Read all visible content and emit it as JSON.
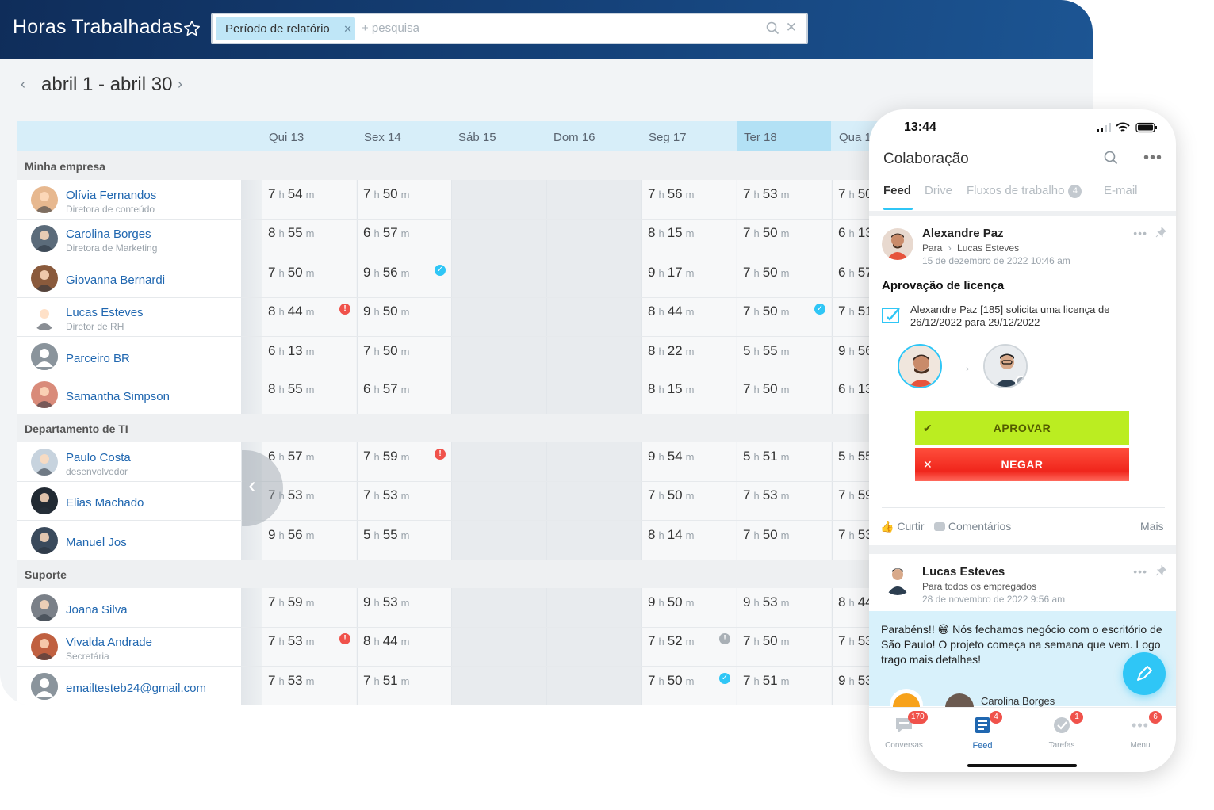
{
  "app": {
    "title": "Horas Trabalhadas",
    "search": {
      "chip": "Período de relatório",
      "placeholder": "+ pesquisa"
    },
    "period": "abril 1 - abril 30"
  },
  "days": [
    "Qui 13",
    "Sex 14",
    "Sáb 15",
    "Dom 16",
    "Seg 17",
    "Ter 18",
    "Qua 1"
  ],
  "departments": [
    {
      "name": "Minha empresa",
      "employees": [
        {
          "name": "Olívia Fernandos",
          "role": "Diretora de conteúdo",
          "hours": [
            [
              "7",
              "54"
            ],
            [
              "7",
              "50"
            ],
            null,
            null,
            [
              "7",
              "56"
            ],
            [
              "7",
              "53"
            ],
            [
              "7",
              "50"
            ]
          ]
        },
        {
          "name": "Carolina Borges",
          "role": "Diretora de Marketing",
          "hours": [
            [
              "8",
              "55"
            ],
            [
              "6",
              "57"
            ],
            null,
            null,
            [
              "8",
              "15"
            ],
            [
              "7",
              "50"
            ],
            [
              "6",
              "13"
            ]
          ]
        },
        {
          "name": "Giovanna Bernardi",
          "role": "",
          "hours": [
            [
              "7",
              "50"
            ],
            [
              "9",
              "56"
            ],
            null,
            null,
            [
              "9",
              "17"
            ],
            [
              "7",
              "50"
            ],
            [
              "6",
              "57"
            ]
          ]
        },
        {
          "name": "Lucas Esteves",
          "role": "Diretor de RH",
          "hours": [
            [
              "8",
              "44"
            ],
            [
              "9",
              "50"
            ],
            null,
            null,
            [
              "8",
              "44"
            ],
            [
              "7",
              "50"
            ],
            [
              "7",
              "51"
            ]
          ]
        },
        {
          "name": "Parceiro BR",
          "role": "",
          "hours": [
            [
              "6",
              "13"
            ],
            [
              "7",
              "50"
            ],
            null,
            null,
            [
              "8",
              "22"
            ],
            [
              "5",
              "55"
            ],
            [
              "9",
              "56"
            ]
          ]
        },
        {
          "name": "Samantha Simpson",
          "role": "",
          "hours": [
            [
              "8",
              "55"
            ],
            [
              "6",
              "57"
            ],
            null,
            null,
            [
              "8",
              "15"
            ],
            [
              "7",
              "50"
            ],
            [
              "6",
              "13"
            ]
          ]
        }
      ]
    },
    {
      "name": "Departamento de TI",
      "employees": [
        {
          "name": "Paulo Costa",
          "role": "desenvolvedor",
          "hours": [
            [
              "6",
              "57"
            ],
            [
              "7",
              "59"
            ],
            null,
            null,
            [
              "9",
              "54"
            ],
            [
              "5",
              "51"
            ],
            [
              "5",
              "55"
            ]
          ]
        },
        {
          "name": "Elias Machado",
          "role": "",
          "hours": [
            [
              "7",
              "53"
            ],
            [
              "7",
              "53"
            ],
            null,
            null,
            [
              "7",
              "50"
            ],
            [
              "7",
              "53"
            ],
            [
              "7",
              "59"
            ]
          ]
        },
        {
          "name": "Manuel Jos",
          "role": "",
          "hours": [
            [
              "9",
              "56"
            ],
            [
              "5",
              "55"
            ],
            null,
            null,
            [
              "8",
              "14"
            ],
            [
              "7",
              "50"
            ],
            [
              "7",
              "53"
            ]
          ]
        }
      ]
    },
    {
      "name": "Suporte",
      "employees": [
        {
          "name": "Joana Silva",
          "role": "",
          "hours": [
            [
              "7",
              "59"
            ],
            [
              "9",
              "53"
            ],
            null,
            null,
            [
              "9",
              "50"
            ],
            [
              "9",
              "53"
            ],
            [
              "8",
              "44"
            ]
          ]
        },
        {
          "name": "Vivalda Andrade",
          "role": "Secretária",
          "hours": [
            [
              "7",
              "53"
            ],
            [
              "8",
              "44"
            ],
            null,
            null,
            [
              "7",
              "52"
            ],
            [
              "7",
              "50"
            ],
            [
              "7",
              "53"
            ]
          ]
        },
        {
          "name": "emailtesteb24@gmail.com",
          "role": "",
          "hours": [
            [
              "7",
              "53"
            ],
            [
              "7",
              "51"
            ],
            null,
            null,
            [
              "7",
              "50"
            ],
            [
              "7",
              "51"
            ],
            [
              "9",
              "53"
            ]
          ]
        }
      ]
    }
  ],
  "units": {
    "h": "h",
    "m": "m"
  },
  "colors": {
    "accent": "#2fc6f6",
    "link": "#2067b0",
    "approve": "#bbed21",
    "deny": "#f0261c",
    "alert": "#f0524b"
  },
  "phone": {
    "time": "13:44",
    "header": "Colaboração",
    "tabs": [
      "Feed",
      "Drive",
      "Fluxos de trabalho",
      "E-mail"
    ],
    "workflow_count": "4",
    "post1": {
      "author": "Alexandre Paz",
      "to_label": "Para",
      "to": "Lucas Esteves",
      "date": "15 de dezembro de 2022 10:46 am",
      "title": "Aprovação de licença",
      "text": "Alexandre Paz [185] solicita uma licença de 26/12/2022 para 29/12/2022",
      "approve": "APROVAR",
      "deny": "NEGAR",
      "like": "Curtir",
      "comments": "Comentários",
      "more": "Mais"
    },
    "post2": {
      "author": "Lucas Esteves",
      "to": "Para todos os empregados",
      "date": "28 de novembro de 2022 9:56 am",
      "text": "Parabéns!! 😁 Nós fechamos negócio com o escritório de São Paulo! O projeto começa na semana que vem. Logo trago mais detalhes!",
      "mention": "Carolina Borges"
    },
    "nav": [
      {
        "label": "Conversas",
        "badge": "170",
        "icon": "chat-icon"
      },
      {
        "label": "Feed",
        "badge": "4",
        "icon": "feed-icon"
      },
      {
        "label": "Tarefas",
        "badge": "1",
        "icon": "tasks-icon"
      },
      {
        "label": "Menu",
        "badge": "6",
        "icon": "menu-dots-icon"
      }
    ]
  }
}
